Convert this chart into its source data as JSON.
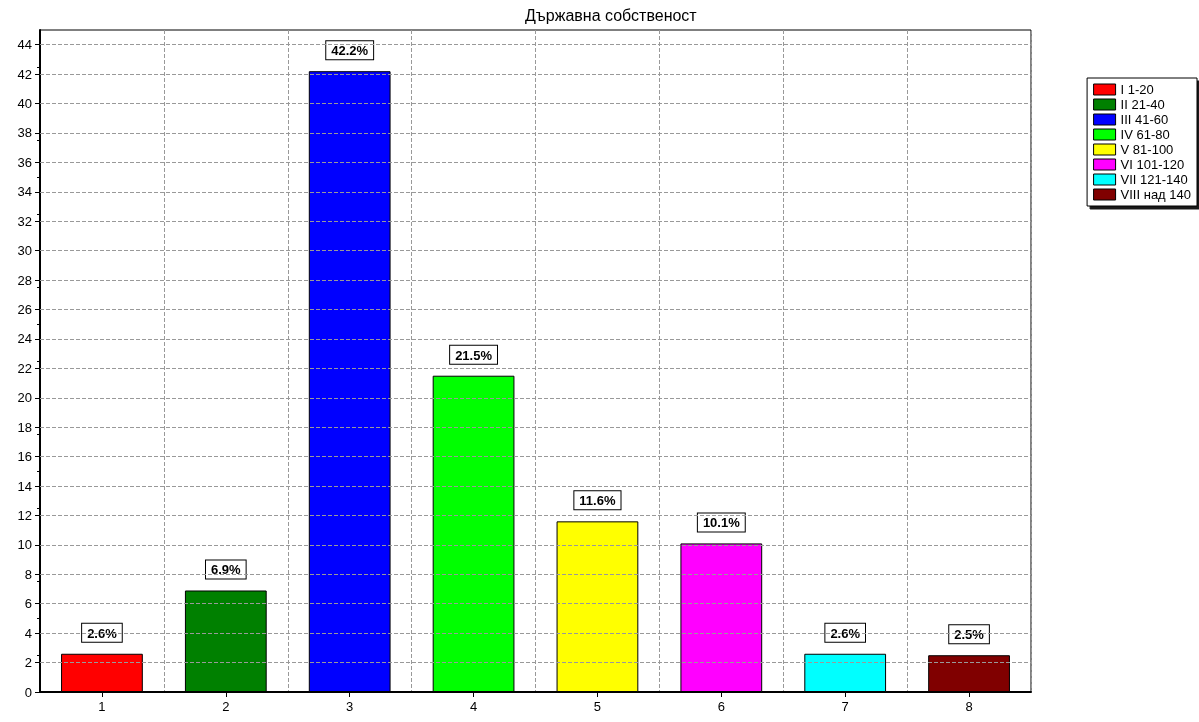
{
  "chart_data": {
    "type": "bar",
    "title": "Държавна собственост",
    "categories": [
      "1",
      "2",
      "3",
      "4",
      "5",
      "6",
      "7",
      "8"
    ],
    "series": [
      {
        "name": "I 1-20",
        "color": "#ff0000",
        "values": [
          2.6,
          null,
          null,
          null,
          null,
          null,
          null,
          null
        ],
        "value_labels": [
          "2.6%",
          null,
          null,
          null,
          null,
          null,
          null,
          null
        ]
      },
      {
        "name": "II 21-40",
        "color": "#008000",
        "values": [
          null,
          6.9,
          null,
          null,
          null,
          null,
          null,
          null
        ],
        "value_labels": [
          null,
          "6.9%",
          null,
          null,
          null,
          null,
          null,
          null
        ]
      },
      {
        "name": "III 41-60",
        "color": "#0000ff",
        "values": [
          null,
          null,
          42.2,
          null,
          null,
          null,
          null,
          null
        ],
        "value_labels": [
          null,
          null,
          "42.2%",
          null,
          null,
          null,
          null,
          null
        ]
      },
      {
        "name": "IV 61-80",
        "color": "#00ff00",
        "values": [
          null,
          null,
          null,
          21.5,
          null,
          null,
          null,
          null
        ],
        "value_labels": [
          null,
          null,
          null,
          "21.5%",
          null,
          null,
          null,
          null
        ]
      },
      {
        "name": "V 81-100",
        "color": "#ffff00",
        "values": [
          null,
          null,
          null,
          null,
          11.6,
          null,
          null,
          null
        ],
        "value_labels": [
          null,
          null,
          null,
          null,
          "11.6%",
          null,
          null,
          null
        ]
      },
      {
        "name": "VI 101-120",
        "color": "#ff00ff",
        "values": [
          null,
          null,
          null,
          null,
          null,
          10.1,
          null,
          null
        ],
        "value_labels": [
          null,
          null,
          null,
          null,
          null,
          "10.1%",
          null,
          null
        ]
      },
      {
        "name": "VII 121-140",
        "color": "#00ffff",
        "values": [
          null,
          null,
          null,
          null,
          null,
          null,
          2.6,
          null
        ],
        "value_labels": [
          null,
          null,
          null,
          null,
          null,
          null,
          "2.6%",
          null
        ]
      },
      {
        "name": "VIII над 140",
        "color": "#800000",
        "values": [
          null,
          null,
          null,
          null,
          null,
          null,
          null,
          2.5
        ],
        "value_labels": [
          null,
          null,
          null,
          null,
          null,
          null,
          null,
          "2.5%"
        ]
      }
    ],
    "ylim": [
      0,
      45
    ],
    "yticks": [
      0,
      2,
      4,
      6,
      8,
      10,
      12,
      14,
      16,
      18,
      20,
      22,
      24,
      26,
      28,
      30,
      32,
      34,
      36,
      38,
      40,
      42,
      44
    ],
    "grid": true,
    "legend": "right"
  }
}
